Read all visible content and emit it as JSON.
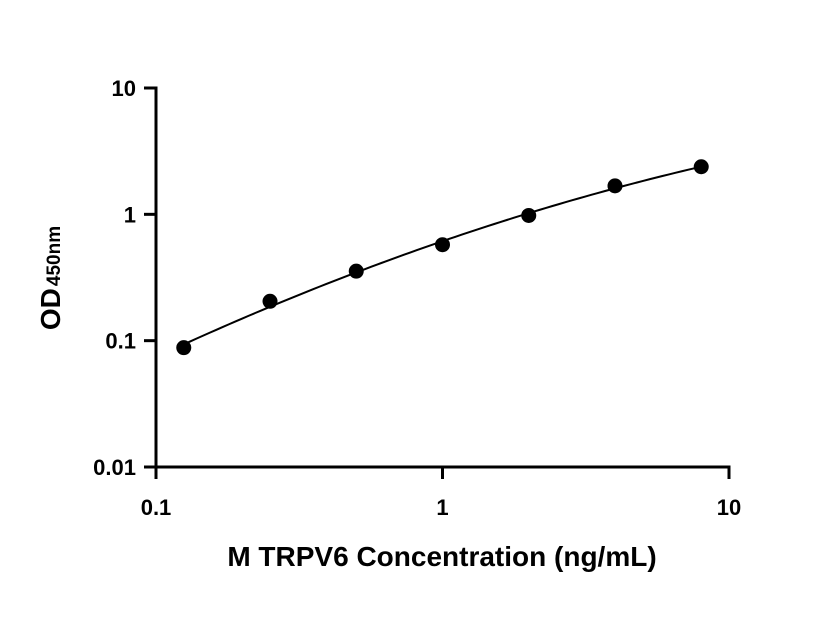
{
  "chart_data": {
    "type": "scatter",
    "title": "",
    "xlabel": "M TRPV6 Concentration (ng/mL)",
    "ylabel": "OD",
    "ylabel_subscript": "450nm",
    "xscale": "log",
    "yscale": "log",
    "xlim": [
      0.1,
      10
    ],
    "ylim": [
      0.01,
      10
    ],
    "x_ticks": [
      0.1,
      1,
      10
    ],
    "x_tick_labels": [
      "0.1",
      "1",
      "10"
    ],
    "y_ticks": [
      0.01,
      0.1,
      1,
      10
    ],
    "y_tick_labels": [
      "0.01",
      "0.1",
      "1",
      "10"
    ],
    "grid": false,
    "legend": "none",
    "series": [
      {
        "x": [
          0.125,
          0.25,
          0.5,
          1,
          2,
          4,
          8
        ],
        "y": [
          0.088,
          0.205,
          0.355,
          0.575,
          0.98,
          1.68,
          2.38
        ],
        "fit_curve": true
      }
    ],
    "colors": {
      "marks": "#000000",
      "axes": "#000000"
    }
  }
}
